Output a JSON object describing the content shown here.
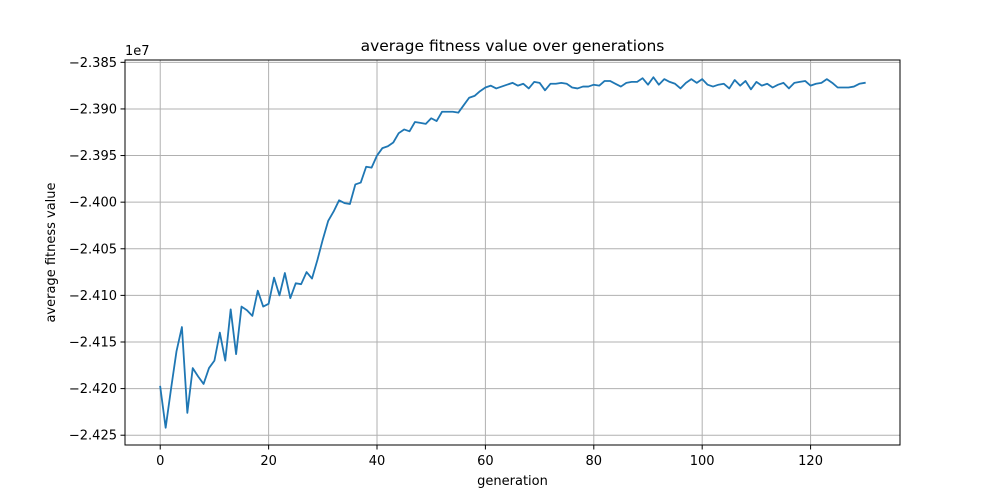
{
  "chart_data": {
    "type": "line",
    "title": "average fitness value over generations",
    "xlabel": "generation",
    "ylabel": "average fitness value",
    "y_offset_label": "1e7",
    "xlim": [
      -6.5,
      136.5
    ],
    "ylim": [
      -24.2605,
      -23.8475
    ],
    "xticks": [
      0,
      20,
      40,
      60,
      80,
      100,
      120
    ],
    "yticks": [
      -24.25,
      -24.2,
      -24.15,
      -24.1,
      -24.05,
      -24.0,
      -23.95,
      -23.9,
      -23.85
    ],
    "ytick_labels": [
      "−2.425",
      "−2.420",
      "−2.415",
      "−2.410",
      "−2.405",
      "−2.400",
      "−2.395",
      "−2.390",
      "−2.385"
    ],
    "grid": true,
    "color": "#1f77b4",
    "series": [
      {
        "x": [
          0,
          1,
          2,
          3,
          4,
          5,
          6,
          7,
          8,
          9,
          10,
          11,
          12,
          13,
          14,
          15,
          16,
          17,
          18,
          19,
          20,
          21,
          22,
          23,
          24,
          25,
          26,
          27,
          28,
          29,
          30,
          31,
          32,
          33,
          34,
          35,
          36,
          37,
          38,
          39,
          40,
          41,
          42,
          43,
          44,
          45,
          46,
          47,
          48,
          49,
          50,
          51,
          52,
          53,
          54,
          55,
          56,
          57,
          58,
          59,
          60,
          61,
          62,
          63,
          64,
          65,
          66,
          67,
          68,
          69,
          70,
          71,
          72,
          73,
          74,
          75,
          76,
          77,
          78,
          79,
          80,
          81,
          82,
          83,
          84,
          85,
          86,
          87,
          88,
          89,
          90,
          91,
          92,
          93,
          94,
          95,
          96,
          97,
          98,
          99,
          100,
          101,
          102,
          103,
          104,
          105,
          106,
          107,
          108,
          109,
          110,
          111,
          112,
          113,
          114,
          115,
          116,
          117,
          118,
          119,
          120,
          121,
          122,
          123,
          124,
          125,
          126,
          127,
          128,
          129,
          130
        ],
        "y": [
          -24.198,
          -24.242,
          -24.2,
          -24.16,
          -24.134,
          -24.226,
          -24.178,
          -24.187,
          -24.195,
          -24.178,
          -24.17,
          -24.14,
          -24.17,
          -24.115,
          -24.163,
          -24.112,
          -24.116,
          -24.122,
          -24.095,
          -24.112,
          -24.109,
          -24.081,
          -24.1,
          -24.076,
          -24.103,
          -24.087,
          -24.088,
          -24.075,
          -24.082,
          -24.062,
          -24.04,
          -24.02,
          -24.01,
          -23.998,
          -24.001,
          -24.002,
          -23.981,
          -23.979,
          -23.962,
          -23.963,
          -23.95,
          -23.942,
          -23.94,
          -23.936,
          -23.926,
          -23.922,
          -23.924,
          -23.914,
          -23.915,
          -23.916,
          -23.91,
          -23.913,
          -23.903,
          -23.903,
          -23.903,
          -23.904,
          -23.896,
          -23.888,
          -23.886,
          -23.881,
          -23.877,
          -23.875,
          -23.878,
          -23.876,
          -23.874,
          -23.872,
          -23.875,
          -23.873,
          -23.878,
          -23.871,
          -23.872,
          -23.88,
          -23.873,
          -23.873,
          -23.872,
          -23.873,
          -23.877,
          -23.878,
          -23.876,
          -23.876,
          -23.874,
          -23.875,
          -23.87,
          -23.87,
          -23.873,
          -23.876,
          -23.872,
          -23.871,
          -23.871,
          -23.867,
          -23.874,
          -23.866,
          -23.874,
          -23.868,
          -23.871,
          -23.873,
          -23.878,
          -23.872,
          -23.868,
          -23.872,
          -23.868,
          -23.874,
          -23.876,
          -23.874,
          -23.873,
          -23.878,
          -23.869,
          -23.875,
          -23.87,
          -23.879,
          -23.871,
          -23.875,
          -23.873,
          -23.877,
          -23.874,
          -23.872,
          -23.878,
          -23.872,
          -23.871,
          -23.87,
          -23.875,
          -23.873,
          -23.872,
          -23.868,
          -23.872,
          -23.877,
          -23.877,
          -23.877,
          -23.876,
          -23.873,
          -23.872
        ]
      }
    ]
  }
}
